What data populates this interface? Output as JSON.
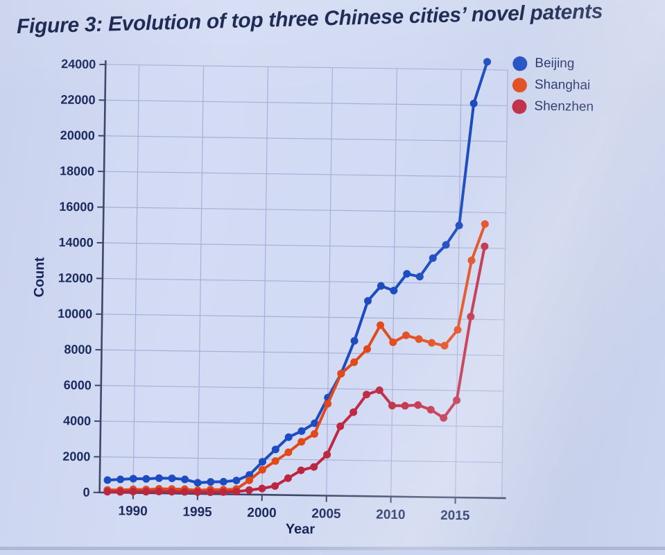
{
  "figure": {
    "title": "Figure 3: Evolution of top three Chinese cities’ novel patents"
  },
  "chart_data": {
    "type": "line",
    "title": "Figure 3: Evolution of top three Chinese cities’ novel patents",
    "xlabel": "Year",
    "ylabel": "Count",
    "grid": true,
    "legend_position": "top-right",
    "xlim": [
      1987.4,
      2018.6
    ],
    "ylim": [
      0,
      24000
    ],
    "x_ticks": [
      1990,
      1995,
      2000,
      2005,
      2010,
      2015
    ],
    "y_ticks": [
      0,
      2000,
      4000,
      6000,
      8000,
      10000,
      12000,
      14000,
      16000,
      18000,
      20000,
      22000,
      24000
    ],
    "x": [
      1988,
      1989,
      1990,
      1991,
      1992,
      1993,
      1994,
      1995,
      1996,
      1997,
      1998,
      1999,
      2000,
      2001,
      2002,
      2003,
      2004,
      2005,
      2006,
      2007,
      2008,
      2009,
      2010,
      2011,
      2012,
      2013,
      2014,
      2015,
      2016,
      2017
    ],
    "series": [
      {
        "name": "Beijing",
        "color": "#1d4cc0",
        "values": [
          700,
          750,
          800,
          800,
          850,
          850,
          800,
          620,
          680,
          700,
          780,
          1100,
          1850,
          2550,
          3250,
          3600,
          4050,
          5500,
          6850,
          8700,
          10950,
          11800,
          11550,
          12500,
          12350,
          13400,
          14150,
          15250,
          22100,
          24450
        ]
      },
      {
        "name": "Shanghai",
        "color": "#e1491a",
        "values": [
          150,
          150,
          200,
          200,
          250,
          250,
          250,
          200,
          250,
          250,
          300,
          800,
          1400,
          1900,
          2400,
          3000,
          3450,
          5150,
          6850,
          7500,
          8250,
          9600,
          8650,
          9050,
          8850,
          8650,
          8500,
          9400,
          13300,
          15350
        ]
      },
      {
        "name": "Shenzhen",
        "color": "#bd2641",
        "values": [
          50,
          50,
          80,
          80,
          100,
          100,
          100,
          100,
          100,
          120,
          150,
          250,
          350,
          500,
          950,
          1400,
          1600,
          2300,
          3900,
          4700,
          5700,
          5950,
          5100,
          5100,
          5150,
          4900,
          4450,
          5450,
          10150,
          14100
        ]
      }
    ],
    "style": {
      "background": "#ccd5ef",
      "plot_fill": "#d4dcf5",
      "gridline_color": "#a6b0d6",
      "axis_color": "#3f4769",
      "tick_label_color": "#1c2a5e",
      "title_color": "#0d1a46"
    }
  }
}
